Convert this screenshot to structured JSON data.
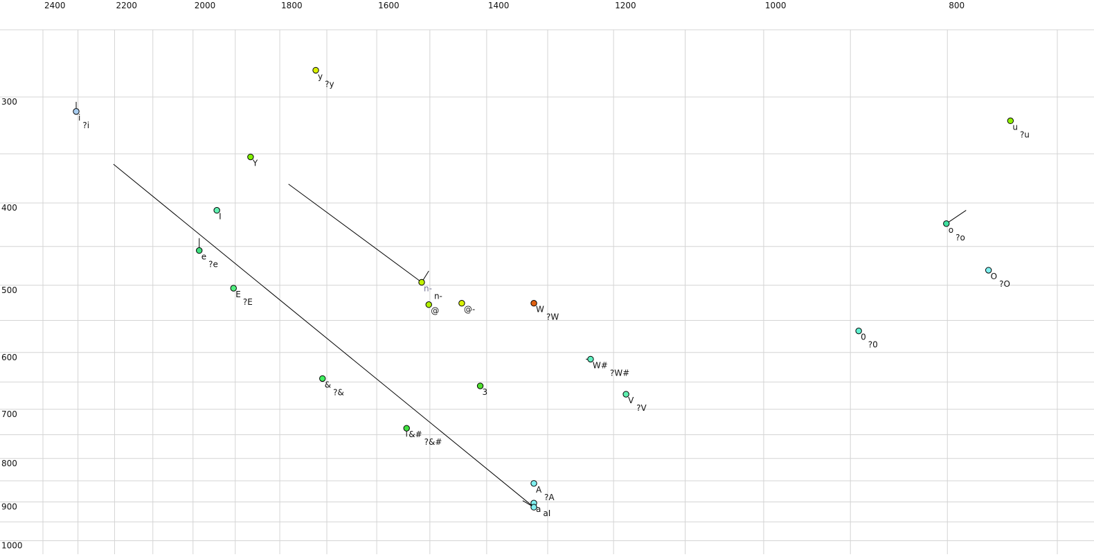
{
  "chart_data": {
    "type": "scatter",
    "title": "",
    "xlabel": "",
    "ylabel": "",
    "x_scale": "log",
    "y_scale": "log",
    "x_reversed": true,
    "y_reversed": true,
    "xlim": [
      2400,
      700
    ],
    "ylim": [
      250,
      1000
    ],
    "grid": true,
    "x_ticks": [
      2400,
      2200,
      2000,
      1800,
      1600,
      1400,
      1200,
      1000,
      800
    ],
    "x_grid": [
      2400,
      2300,
      2200,
      2100,
      2000,
      1900,
      1800,
      1700,
      1600,
      1500,
      1400,
      1300,
      1200,
      1100,
      1000,
      900,
      800,
      700
    ],
    "y_ticks": [
      300,
      400,
      500,
      600,
      700,
      800,
      900,
      1000
    ],
    "y_grid": [
      250,
      300,
      350,
      400,
      450,
      500,
      550,
      600,
      650,
      700,
      750,
      800,
      850,
      900,
      950,
      1000
    ],
    "points": [
      {
        "label": "i",
        "label2": "?i",
        "x": 2305,
        "y": 312,
        "color": "#a8cdf0",
        "tail": [
          2305,
          304
        ]
      },
      {
        "label": "y",
        "label2": "?y",
        "x": 1723,
        "y": 279,
        "color": "#d8f000"
      },
      {
        "label": "Y",
        "x": 1865,
        "y": 353,
        "color": "#80f000"
      },
      {
        "label": "I",
        "x": 1943,
        "y": 408,
        "color": "#60f0b0"
      },
      {
        "label": "e",
        "label2": "?e",
        "x": 1985,
        "y": 455,
        "color": "#40e080",
        "tail": [
          1985,
          440
        ]
      },
      {
        "label": "E",
        "label2": "?E",
        "x": 1904,
        "y": 504,
        "color": "#50f080"
      },
      {
        "label": "n-",
        "label2": "n-",
        "x": 1515,
        "y": 496,
        "color": "#c0f000",
        "tail": [
          1502,
          481
        ],
        "label_color": "#707090"
      },
      {
        "label": "@",
        "x": 1502,
        "y": 527,
        "color": "#b0f000"
      },
      {
        "label": "@-",
        "x": 1443,
        "y": 525,
        "color": "#d8f000"
      },
      {
        "label": "W",
        "label2": "?W",
        "x": 1322,
        "y": 525,
        "color": "#e06010"
      },
      {
        "label": "3",
        "x": 1411,
        "y": 657,
        "color": "#50e030"
      },
      {
        "label": "&",
        "label2": "?&",
        "x": 1709,
        "y": 644,
        "color": "#40f060"
      },
      {
        "label": "&#",
        "label2": "?&#",
        "x": 1543,
        "y": 737,
        "color": "#40e040",
        "tail": [
          1543,
          754
        ]
      },
      {
        "label": "W#",
        "label2": "?W#",
        "x": 1234,
        "y": 611,
        "color": "#60f0c0",
        "tail": [
          1241,
          611
        ]
      },
      {
        "label": "V",
        "label2": "?V",
        "x": 1182,
        "y": 672,
        "color": "#60f0b0"
      },
      {
        "label": "A",
        "label2": "?A",
        "x": 1322,
        "y": 856,
        "color": "#80f0f0"
      },
      {
        "label": "a",
        "x": 1322,
        "y": 903,
        "color": "#80f0f0"
      },
      {
        "label": "aI",
        "x": 1322,
        "y": 913,
        "color": "#80f0f0",
        "tail": [
          1340,
          897
        ]
      },
      {
        "label": "u",
        "label2": "?u",
        "x": 741,
        "y": 320,
        "color": "#90f000"
      },
      {
        "label": "o",
        "label2": "?o",
        "x": 801,
        "y": 423,
        "color": "#40e0a0",
        "tail": [
          782,
          408
        ]
      },
      {
        "label": "O",
        "label2": "?O",
        "x": 761,
        "y": 480,
        "color": "#80f0f0"
      },
      {
        "label": "0",
        "label2": "?0",
        "x": 891,
        "y": 566,
        "color": "#60f0d0"
      }
    ],
    "trajectories": [
      {
        "from": [
          2203,
          360
        ],
        "to": [
          1322,
          913
        ]
      },
      {
        "from": [
          1781,
          380
        ],
        "to": [
          1515,
          496
        ]
      }
    ]
  }
}
